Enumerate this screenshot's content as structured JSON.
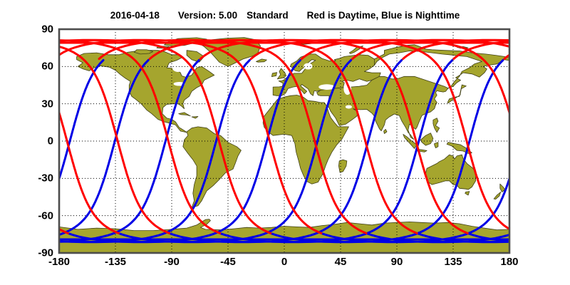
{
  "title": {
    "date": "2016-04-18",
    "version_label": "Version: 5.00",
    "mode": "Standard",
    "legend": "Red is Daytime, Blue is Nighttime"
  },
  "axes": {
    "x_tick_labels": [
      "-180",
      "-135",
      "-90",
      "-45",
      "0",
      "45",
      "90",
      "135",
      "180"
    ],
    "y_tick_labels": [
      "90",
      "60",
      "30",
      "0",
      "-30",
      "-60",
      "-90"
    ],
    "x_ticks": [
      -180,
      -135,
      -90,
      -45,
      0,
      45,
      90,
      135,
      180
    ],
    "y_ticks": [
      90,
      60,
      30,
      0,
      -30,
      -60,
      -90
    ]
  },
  "colors": {
    "daytime": "#ff0000",
    "nighttime": "#0000e6",
    "land": "#a5a52e",
    "land_outline": "#3f3f15",
    "grid": "#000000",
    "frame": "#4d4d4d",
    "background": "#ffffff"
  },
  "chart_data": {
    "type": "line",
    "title": "2016-04-18  Version: 5.00  Standard  Red is Daytime, Blue is Nighttime",
    "xlabel": "",
    "ylabel": "",
    "xlim": [
      -180,
      180
    ],
    "ylim": [
      -90,
      90
    ],
    "x_ticks": [
      -180,
      -135,
      -90,
      -45,
      0,
      45,
      90,
      135,
      180
    ],
    "y_ticks": [
      90,
      60,
      30,
      0,
      -30,
      -60,
      -90
    ],
    "grid": "dotted",
    "legend_position": "in-title",
    "series": [
      {
        "name": "Daytime ground track",
        "color": "#ff0000"
      },
      {
        "name": "Nighttime ground track",
        "color": "#0000e6"
      }
    ],
    "ground_track_model": {
      "projection": "equirectangular",
      "max_latitude_deg": 81.3,
      "orbits_drawn": 9,
      "node_spacing_deg_westward": 40.5,
      "first_ascending_node_lon_deg": 28.8,
      "day_arc_arg_of_lat_deg": [
        283.3,
        473.4
      ],
      "night_arc_arg_of_lat_deg": [
        113.4,
        283.3
      ],
      "day_to_night_transition_lat_deg": 65,
      "night_to_day_transition_lat_deg": -74,
      "polar_band_lines_lat_deg": [
        81.0,
        79.0,
        -79.0,
        -81.0
      ]
    }
  }
}
